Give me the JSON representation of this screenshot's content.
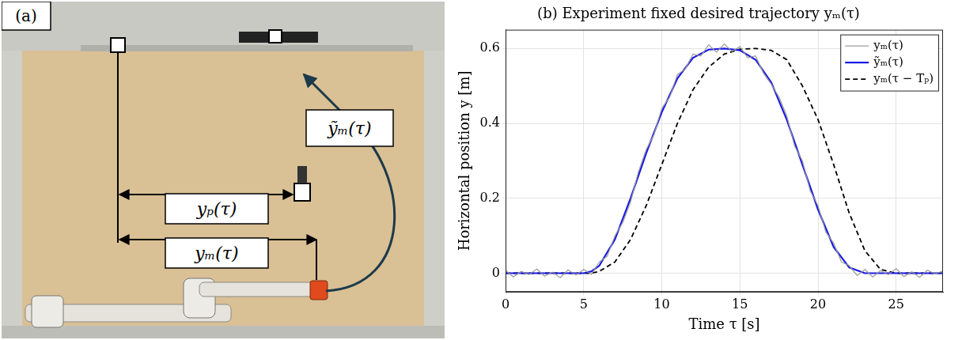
{
  "panel_a": {
    "letter": "(a)",
    "labels": {
      "y_m_tilde": "ỹₘ(τ)",
      "y_p": "yₚ(τ)",
      "y_m": "yₘ(τ)"
    }
  },
  "chart_data": {
    "type": "line",
    "title": "(b) Experiment fixed desired trajectory yₘ(τ)",
    "x_label": "Time τ [s]",
    "y_label": "Horizontal position y [m]",
    "xlim": [
      0,
      28
    ],
    "xticks": [
      0,
      5,
      10,
      15,
      20,
      25
    ],
    "ylim": [
      -0.05,
      0.65
    ],
    "yticks": [
      0,
      0.2,
      0.4,
      0.6
    ],
    "grid": true,
    "legend": "upper right",
    "series": [
      {
        "name": "yₘ(τ)",
        "color": "#999999",
        "line_style": "solid",
        "x": [
          0,
          0.5,
          1,
          1.5,
          2,
          2.5,
          3,
          3.5,
          4,
          4.5,
          5,
          5.5,
          6,
          6.5,
          7,
          7.5,
          8,
          8.5,
          9,
          9.5,
          10,
          10.5,
          11,
          11.5,
          12,
          12.5,
          13,
          13.5,
          14,
          14.5,
          15,
          15.5,
          16,
          16.5,
          17,
          17.5,
          18,
          18.5,
          19,
          19.5,
          20,
          20.5,
          21,
          21.5,
          22,
          22.5,
          23,
          23.5,
          24,
          24.5,
          25,
          25.5,
          26,
          26.5,
          27,
          27.5,
          28
        ],
        "values": [
          0.008,
          -0.01,
          0.005,
          -0.004,
          0.011,
          -0.008,
          0.003,
          -0.012,
          0.009,
          -0.005,
          0.01,
          -0.003,
          0.03,
          0.045,
          0.1,
          0.135,
          0.19,
          0.27,
          0.33,
          0.37,
          0.44,
          0.47,
          0.53,
          0.545,
          0.585,
          0.58,
          0.61,
          0.59,
          0.612,
          0.592,
          0.605,
          0.575,
          0.58,
          0.535,
          0.505,
          0.47,
          0.42,
          0.34,
          0.3,
          0.22,
          0.18,
          0.11,
          0.08,
          0.03,
          0.02,
          -0.006,
          0.01,
          -0.01,
          0.007,
          -0.004,
          0.012,
          -0.009,
          0.004,
          -0.011,
          0.008,
          -0.002,
          0.006
        ]
      },
      {
        "name": "ỹₘ(τ)",
        "color": "#1a1ae6",
        "line_style": "solid",
        "x": [
          0,
          1,
          2,
          3,
          4,
          5,
          5.5,
          6,
          7,
          8,
          9,
          10,
          11,
          12,
          13,
          14,
          15,
          16,
          17,
          18,
          19,
          20,
          21,
          22,
          23,
          24,
          25,
          26,
          27,
          28
        ],
        "values": [
          0,
          0,
          0,
          0,
          0,
          0,
          0.005,
          0.02,
          0.09,
          0.2,
          0.32,
          0.43,
          0.52,
          0.575,
          0.597,
          0.6,
          0.595,
          0.57,
          0.51,
          0.41,
          0.29,
          0.17,
          0.07,
          0.015,
          0,
          0,
          0,
          0,
          0,
          0
        ]
      },
      {
        "name": "yₘ(τ − Tₚ)",
        "color": "#000000",
        "line_style": "dashed",
        "x": [
          0,
          1,
          2,
          3,
          4,
          5,
          5.5,
          6,
          7,
          8,
          9,
          10,
          11,
          12,
          13,
          14,
          15,
          16,
          17,
          18,
          19,
          20,
          21,
          22,
          23,
          24,
          25,
          26,
          27,
          28
        ],
        "values": [
          0,
          0,
          0,
          0,
          0,
          0,
          0,
          0.005,
          0.03,
          0.09,
          0.18,
          0.29,
          0.4,
          0.49,
          0.55,
          0.585,
          0.598,
          0.6,
          0.595,
          0.57,
          0.5,
          0.41,
          0.29,
          0.16,
          0.06,
          0.01,
          0,
          0,
          0,
          0
        ]
      }
    ]
  }
}
